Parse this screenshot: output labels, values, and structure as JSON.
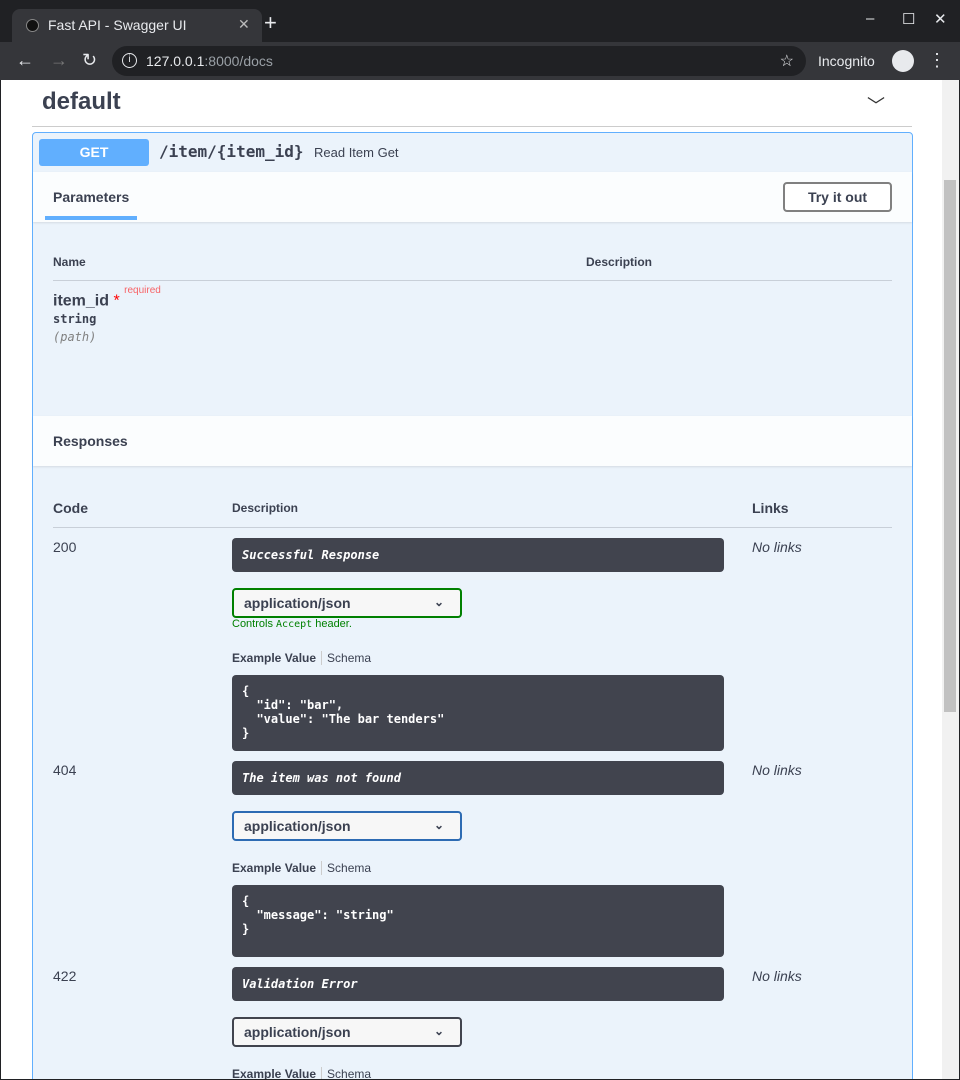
{
  "browser": {
    "tab_title": "Fast API - Swagger UI",
    "url_host": "127.0.0.1",
    "url_rest": ":8000/docs",
    "profile": "Incognito"
  },
  "tag": {
    "title": "default"
  },
  "operation": {
    "method": "GET",
    "path": "/item/{item_id}",
    "summary": "Read Item Get",
    "color": "#61affe"
  },
  "parameters": {
    "title": "Parameters",
    "try_label": "Try it out",
    "col_name": "Name",
    "col_desc": "Description",
    "items": [
      {
        "name": "item_id",
        "required_mark": "*",
        "required_label": "required",
        "type": "string",
        "in": "(path)"
      }
    ]
  },
  "responses": {
    "title": "Responses",
    "col_code": "Code",
    "col_desc": "Description",
    "col_links": "Links",
    "items": [
      {
        "code": "200",
        "description": "Successful Response",
        "media": "application/json",
        "controls": "Controls ",
        "controls_code": "Accept",
        "controls_tail": " header.",
        "tab_example": "Example Value",
        "tab_schema": "Schema",
        "example": "{\n  \"id\": \"bar\",\n  \"value\": \"The bar tenders\"\n}",
        "links": "No links"
      },
      {
        "code": "404",
        "description": "The item was not found",
        "media": "application/json",
        "tab_example": "Example Value",
        "tab_schema": "Schema",
        "example": "{\n  \"message\": \"string\"\n}",
        "links": "No links"
      },
      {
        "code": "422",
        "description": "Validation Error",
        "media": "application/json",
        "tab_example": "Example Value",
        "tab_schema": "Schema",
        "links": "No links"
      }
    ]
  }
}
